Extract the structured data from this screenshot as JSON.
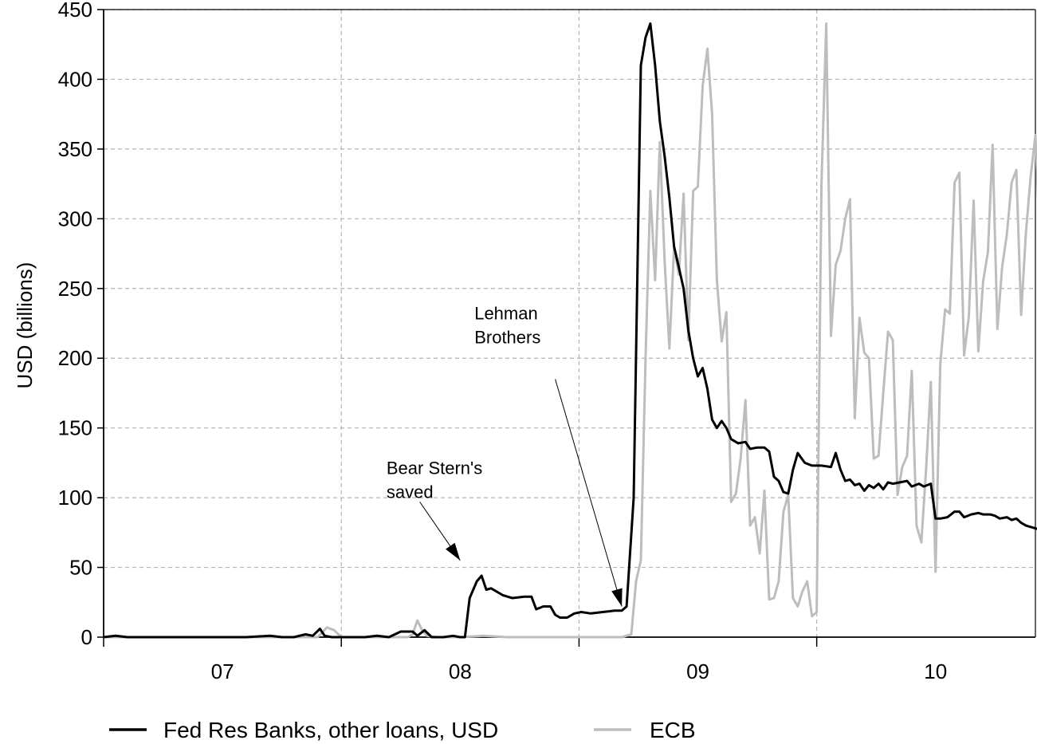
{
  "chart_data": {
    "type": "line",
    "ylabel": "USD (billions)",
    "xlabel": "",
    "ylim": [
      0,
      450
    ],
    "xlim": [
      2006.5,
      2010.42
    ],
    "yticks": [
      0,
      50,
      100,
      150,
      200,
      250,
      300,
      350,
      400,
      450
    ],
    "xtick_labels": [
      {
        "label": "07",
        "pos": 2007.0
      },
      {
        "label": "08",
        "pos": 2008.0
      },
      {
        "label": "09",
        "pos": 2009.0
      },
      {
        "label": "10",
        "pos": 2010.0
      }
    ],
    "year_boundaries": [
      2007.5,
      2008.5,
      2009.5
    ],
    "grid": true,
    "legend_position": "bottom",
    "series": [
      {
        "name": "Fed Res Banks, other loans, USD",
        "color": "#000000",
        "points": [
          [
            2006.5,
            0
          ],
          [
            2006.55,
            1
          ],
          [
            2006.6,
            0
          ],
          [
            2006.7,
            0
          ],
          [
            2006.8,
            0
          ],
          [
            2006.9,
            0
          ],
          [
            2007.0,
            0
          ],
          [
            2007.1,
            0
          ],
          [
            2007.2,
            1
          ],
          [
            2007.25,
            0
          ],
          [
            2007.3,
            0
          ],
          [
            2007.35,
            2
          ],
          [
            2007.38,
            1
          ],
          [
            2007.41,
            6
          ],
          [
            2007.43,
            1
          ],
          [
            2007.46,
            0
          ],
          [
            2007.5,
            0
          ],
          [
            2007.55,
            0
          ],
          [
            2007.6,
            0
          ],
          [
            2007.65,
            1
          ],
          [
            2007.7,
            0
          ],
          [
            2007.75,
            4
          ],
          [
            2007.8,
            4
          ],
          [
            2007.82,
            1
          ],
          [
            2007.85,
            5
          ],
          [
            2007.88,
            0
          ],
          [
            2007.93,
            0
          ],
          [
            2007.97,
            1
          ],
          [
            2008.0,
            0
          ],
          [
            2008.02,
            0
          ],
          [
            2008.04,
            28
          ],
          [
            2008.07,
            40
          ],
          [
            2008.09,
            44
          ],
          [
            2008.11,
            34
          ],
          [
            2008.13,
            35
          ],
          [
            2008.18,
            30
          ],
          [
            2008.22,
            28
          ],
          [
            2008.27,
            29
          ],
          [
            2008.3,
            29
          ],
          [
            2008.32,
            20
          ],
          [
            2008.35,
            22
          ],
          [
            2008.38,
            22
          ],
          [
            2008.4,
            16
          ],
          [
            2008.42,
            14
          ],
          [
            2008.45,
            14
          ],
          [
            2008.48,
            17
          ],
          [
            2008.51,
            18
          ],
          [
            2008.55,
            17
          ],
          [
            2008.6,
            18
          ],
          [
            2008.65,
            19
          ],
          [
            2008.68,
            19
          ],
          [
            2008.7,
            22
          ],
          [
            2008.73,
            100
          ],
          [
            2008.76,
            410
          ],
          [
            2008.78,
            430
          ],
          [
            2008.8,
            440
          ],
          [
            2008.82,
            410
          ],
          [
            2008.84,
            370
          ],
          [
            2008.86,
            345
          ],
          [
            2008.88,
            315
          ],
          [
            2008.9,
            280
          ],
          [
            2008.92,
            265
          ],
          [
            2008.94,
            250
          ],
          [
            2008.96,
            220
          ],
          [
            2008.98,
            200
          ],
          [
            2009.0,
            187
          ],
          [
            2009.02,
            193
          ],
          [
            2009.04,
            178
          ],
          [
            2009.06,
            156
          ],
          [
            2009.08,
            150
          ],
          [
            2009.1,
            155
          ],
          [
            2009.12,
            150
          ],
          [
            2009.14,
            142
          ],
          [
            2009.17,
            139
          ],
          [
            2009.2,
            140
          ],
          [
            2009.22,
            135
          ],
          [
            2009.25,
            136
          ],
          [
            2009.28,
            136
          ],
          [
            2009.3,
            133
          ],
          [
            2009.32,
            115
          ],
          [
            2009.34,
            112
          ],
          [
            2009.36,
            104
          ],
          [
            2009.38,
            103
          ],
          [
            2009.4,
            120
          ],
          [
            2009.42,
            132
          ],
          [
            2009.45,
            125
          ],
          [
            2009.48,
            123
          ],
          [
            2009.52,
            123
          ],
          [
            2009.56,
            122
          ],
          [
            2009.58,
            132
          ],
          [
            2009.6,
            120
          ],
          [
            2009.62,
            112
          ],
          [
            2009.64,
            113
          ],
          [
            2009.66,
            109
          ],
          [
            2009.68,
            110
          ],
          [
            2009.7,
            105
          ],
          [
            2009.72,
            109
          ],
          [
            2009.74,
            107
          ],
          [
            2009.76,
            110
          ],
          [
            2009.78,
            106
          ],
          [
            2009.8,
            111
          ],
          [
            2009.82,
            110
          ],
          [
            2009.85,
            111
          ],
          [
            2009.88,
            112
          ],
          [
            2009.9,
            108
          ],
          [
            2009.93,
            110
          ],
          [
            2009.95,
            108
          ],
          [
            2009.98,
            110
          ],
          [
            2010.0,
            85
          ],
          [
            2010.02,
            85
          ],
          [
            2010.05,
            86
          ],
          [
            2010.08,
            90
          ],
          [
            2010.1,
            90
          ],
          [
            2010.12,
            86
          ],
          [
            2010.15,
            88
          ],
          [
            2010.18,
            89
          ],
          [
            2010.2,
            88
          ],
          [
            2010.23,
            88
          ],
          [
            2010.25,
            87
          ],
          [
            2010.27,
            85
          ],
          [
            2010.3,
            86
          ],
          [
            2010.32,
            84
          ],
          [
            2010.34,
            85
          ],
          [
            2010.36,
            82
          ],
          [
            2010.38,
            80
          ],
          [
            2010.4,
            79
          ],
          [
            2010.42,
            78
          ],
          [
            2010.44,
            77
          ],
          [
            2010.47,
            75
          ],
          [
            2010.49,
            71
          ]
        ]
      },
      {
        "name": "ECB",
        "color": "#bdbdbd",
        "points": [
          [
            2006.5,
            0
          ],
          [
            2006.7,
            0
          ],
          [
            2006.9,
            0
          ],
          [
            2007.1,
            0
          ],
          [
            2007.3,
            0
          ],
          [
            2007.4,
            0
          ],
          [
            2007.44,
            7
          ],
          [
            2007.47,
            5
          ],
          [
            2007.5,
            0
          ],
          [
            2007.6,
            0
          ],
          [
            2007.7,
            0
          ],
          [
            2007.78,
            0
          ],
          [
            2007.8,
            2
          ],
          [
            2007.82,
            12
          ],
          [
            2007.84,
            5
          ],
          [
            2007.86,
            1
          ],
          [
            2007.9,
            0
          ],
          [
            2008.0,
            0
          ],
          [
            2008.1,
            1
          ],
          [
            2008.2,
            0
          ],
          [
            2008.3,
            0
          ],
          [
            2008.4,
            0
          ],
          [
            2008.5,
            0
          ],
          [
            2008.6,
            0
          ],
          [
            2008.68,
            0
          ],
          [
            2008.72,
            2
          ],
          [
            2008.74,
            40
          ],
          [
            2008.76,
            55
          ],
          [
            2008.78,
            200
          ],
          [
            2008.8,
            320
          ],
          [
            2008.82,
            256
          ],
          [
            2008.84,
            355
          ],
          [
            2008.86,
            270
          ],
          [
            2008.88,
            207
          ],
          [
            2008.9,
            280
          ],
          [
            2008.92,
            260
          ],
          [
            2008.94,
            318
          ],
          [
            2008.96,
            213
          ],
          [
            2008.98,
            320
          ],
          [
            2009.0,
            323
          ],
          [
            2009.02,
            395
          ],
          [
            2009.04,
            422
          ],
          [
            2009.06,
            375
          ],
          [
            2009.08,
            256
          ],
          [
            2009.1,
            212
          ],
          [
            2009.12,
            233
          ],
          [
            2009.14,
            97
          ],
          [
            2009.16,
            103
          ],
          [
            2009.18,
            128
          ],
          [
            2009.2,
            170
          ],
          [
            2009.22,
            80
          ],
          [
            2009.24,
            86
          ],
          [
            2009.26,
            60
          ],
          [
            2009.28,
            105
          ],
          [
            2009.3,
            27
          ],
          [
            2009.32,
            28
          ],
          [
            2009.34,
            40
          ],
          [
            2009.36,
            90
          ],
          [
            2009.38,
            102
          ],
          [
            2009.4,
            28
          ],
          [
            2009.42,
            22
          ],
          [
            2009.44,
            33
          ],
          [
            2009.46,
            40
          ],
          [
            2009.48,
            15
          ],
          [
            2009.5,
            18
          ],
          [
            2009.52,
            325
          ],
          [
            2009.54,
            440
          ],
          [
            2009.56,
            216
          ],
          [
            2009.58,
            267
          ],
          [
            2009.6,
            277
          ],
          [
            2009.62,
            300
          ],
          [
            2009.64,
            314
          ],
          [
            2009.66,
            157
          ],
          [
            2009.68,
            229
          ],
          [
            2009.7,
            204
          ],
          [
            2009.72,
            200
          ],
          [
            2009.74,
            128
          ],
          [
            2009.76,
            130
          ],
          [
            2009.78,
            175
          ],
          [
            2009.8,
            219
          ],
          [
            2009.82,
            213
          ],
          [
            2009.84,
            102
          ],
          [
            2009.86,
            122
          ],
          [
            2009.88,
            130
          ],
          [
            2009.9,
            191
          ],
          [
            2009.92,
            80
          ],
          [
            2009.94,
            68
          ],
          [
            2009.96,
            120
          ],
          [
            2009.98,
            183
          ],
          [
            2010.0,
            47
          ],
          [
            2010.02,
            196
          ],
          [
            2010.04,
            235
          ],
          [
            2010.06,
            232
          ],
          [
            2010.08,
            326
          ],
          [
            2010.1,
            333
          ],
          [
            2010.12,
            202
          ],
          [
            2010.14,
            230
          ],
          [
            2010.16,
            313
          ],
          [
            2010.18,
            205
          ],
          [
            2010.2,
            255
          ],
          [
            2010.22,
            276
          ],
          [
            2010.24,
            353
          ],
          [
            2010.26,
            221
          ],
          [
            2010.28,
            265
          ],
          [
            2010.3,
            289
          ],
          [
            2010.32,
            326
          ],
          [
            2010.34,
            335
          ],
          [
            2010.36,
            231
          ],
          [
            2010.38,
            290
          ],
          [
            2010.4,
            330
          ],
          [
            2010.42,
            360
          ],
          [
            2010.44,
            279
          ],
          [
            2010.46,
            320
          ],
          [
            2010.48,
            387
          ]
        ]
      }
    ],
    "annotations": [
      {
        "lines": [
          "Lehman",
          "Brothers"
        ],
        "arrow_to": [
          2008.68,
          22
        ],
        "arrow_from": [
          2008.4,
          185
        ],
        "text_at": [
          2008.06,
          228
        ]
      },
      {
        "lines": [
          "Bear Stern's",
          "saved"
        ],
        "arrow_to": [
          2008.0,
          55
        ],
        "arrow_from": [
          2007.83,
          97
        ],
        "text_at": [
          2007.69,
          117
        ]
      }
    ]
  }
}
